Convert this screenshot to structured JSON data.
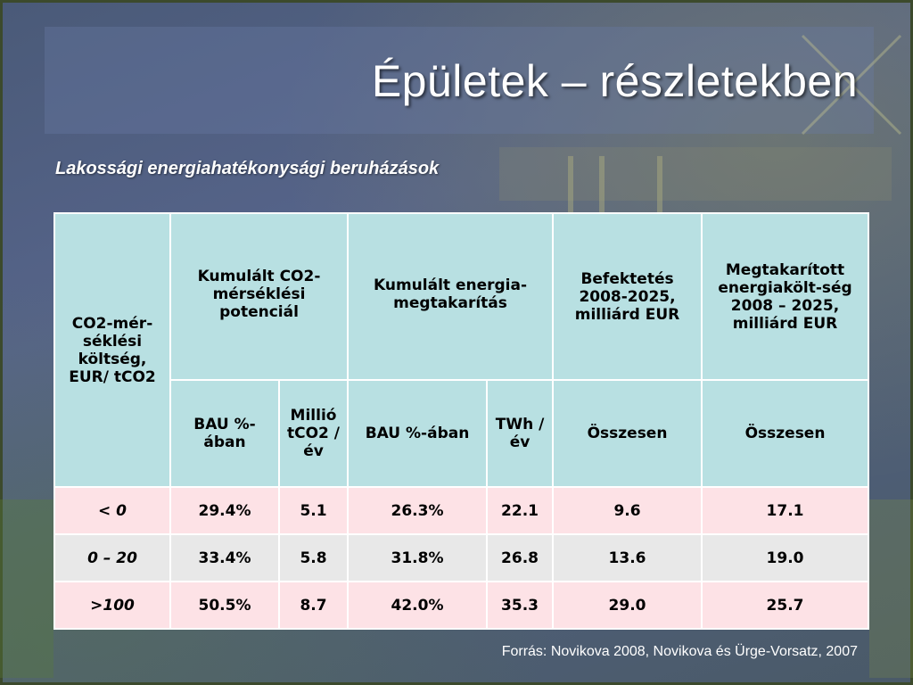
{
  "slide": {
    "title": "Épületek – részletekben",
    "subtitle": "Lakossági energiahatékonysági beruházások",
    "source": "Forrás: Novikova 2008, Novikova és Ürge-Vorsatz, 2007"
  },
  "table": {
    "header_row1": {
      "col1": "CO2-mér-séklési költség, EUR/ tCO2",
      "col_group1": "Kumulált CO2-mérséklési potenciál",
      "col_group2": "Kumulált energia-megtakarítás",
      "col_invest": "Befektetés 2008-2025, milliárd EUR",
      "col_saved": "Megtakarított energiakölt-ség 2008 – 2025, milliárd EUR"
    },
    "header_row2": {
      "bau1": "BAU %-ában",
      "mtco2": "Millió tCO2 /év",
      "bau2": "BAU %-ában",
      "twh": "TWh /év",
      "total1": "Összesen",
      "total2": "Összesen"
    },
    "rows": [
      {
        "prefix": "< ",
        "label": "0",
        "bau1": "29.4%",
        "mtco2": "5.1",
        "bau2": "26.3%",
        "twh": "22.1",
        "invest": "9.6",
        "saved": "17.1"
      },
      {
        "prefix": "",
        "label": "0 – 20",
        "bau1": "33.4%",
        "mtco2": "5.8",
        "bau2": "31.8%",
        "twh": "26.8",
        "invest": "13.6",
        "saved": "19.0"
      },
      {
        "prefix": ">",
        "label": "100",
        "bau1": "50.5%",
        "mtco2": "8.7",
        "bau2": "42.0%",
        "twh": "35.3",
        "invest": "29.0",
        "saved": "25.7"
      }
    ]
  }
}
